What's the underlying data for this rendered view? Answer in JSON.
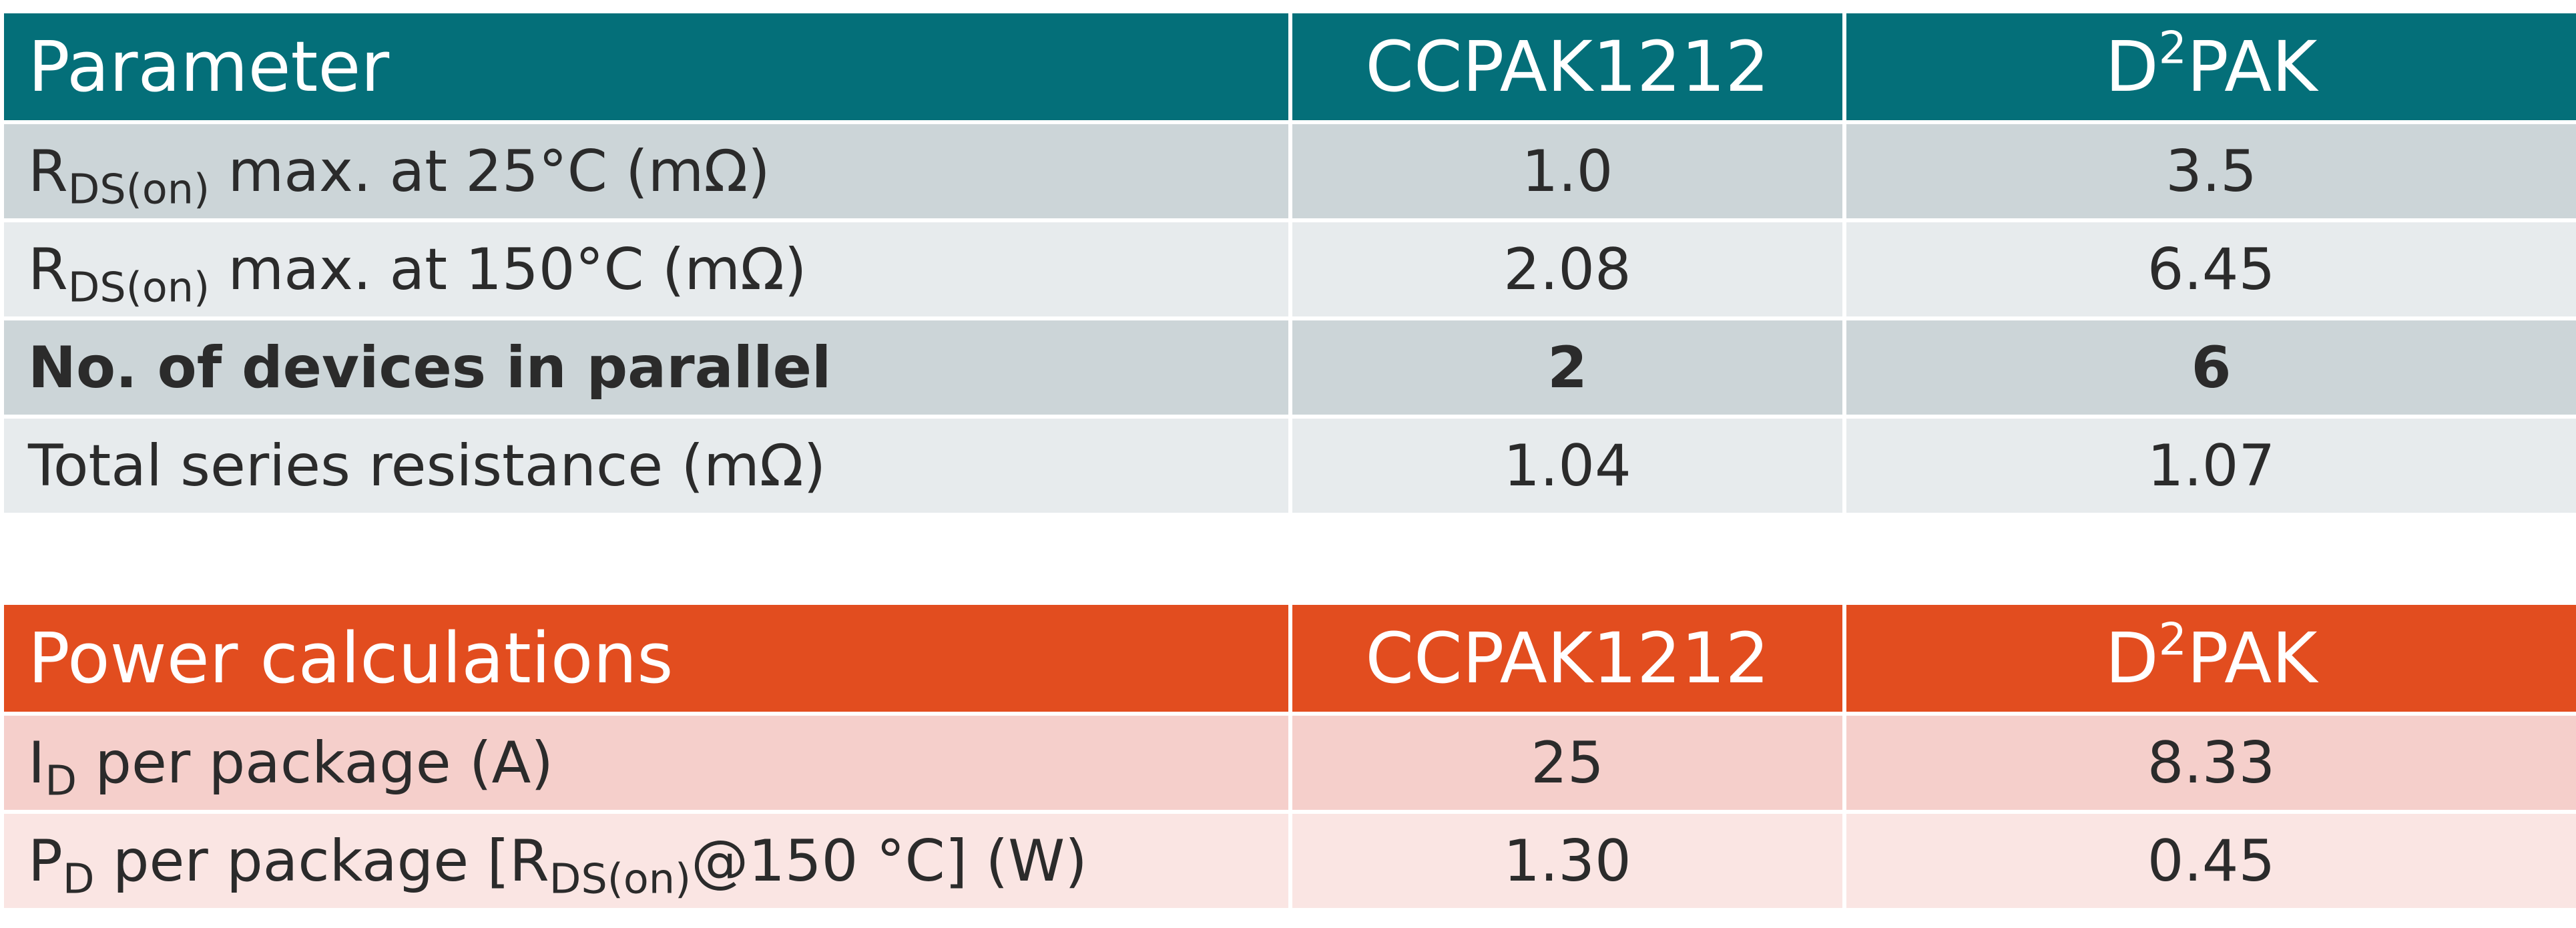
{
  "parameters_table": {
    "header": {
      "parameter": "Parameter",
      "col1": "CCPAK1212",
      "col2_base": "D",
      "col2_sup": "2",
      "col2_rest": "PAK"
    },
    "rows": [
      {
        "label_main": "R",
        "label_sub": "DS(on)",
        "label_rest": " max. at 25°C (mΩ)",
        "ccpak": "1.0",
        "d2pak": "3.5"
      },
      {
        "label_main": "R",
        "label_sub": "DS(on)",
        "label_rest": " max. at 150°C (mΩ)",
        "ccpak": "2.08",
        "d2pak": "6.45"
      },
      {
        "label": "No. of devices in parallel",
        "ccpak": "2",
        "d2pak": "6"
      },
      {
        "label": "Total series resistance (mΩ)",
        "ccpak": "1.04",
        "d2pak": "1.07"
      }
    ]
  },
  "power_table": {
    "header": {
      "parameter": "Power calculations",
      "col1": "CCPAK1212",
      "col2_base": "D",
      "col2_sup": "2",
      "col2_rest": "PAK"
    },
    "rows": [
      {
        "label_main": "I",
        "label_sub": "D",
        "label_rest": " per package (A)",
        "ccpak": "25",
        "d2pak": "8.33"
      },
      {
        "label_main": "P",
        "label_sub": "D",
        "label_rest": " per package [R",
        "label_sub2": "DS(on)",
        "label_rest2": "@150 °C] (W)",
        "ccpak": "1.30",
        "d2pak": "0.45"
      }
    ]
  },
  "colors": {
    "params_header": "#046f79",
    "power_header": "#e24d1f",
    "params_row_dark": "#ccd5d8",
    "params_row_light": "#e7ebed",
    "power_row_dark": "#f5cfcb",
    "power_row_light": "#fae5e3"
  }
}
